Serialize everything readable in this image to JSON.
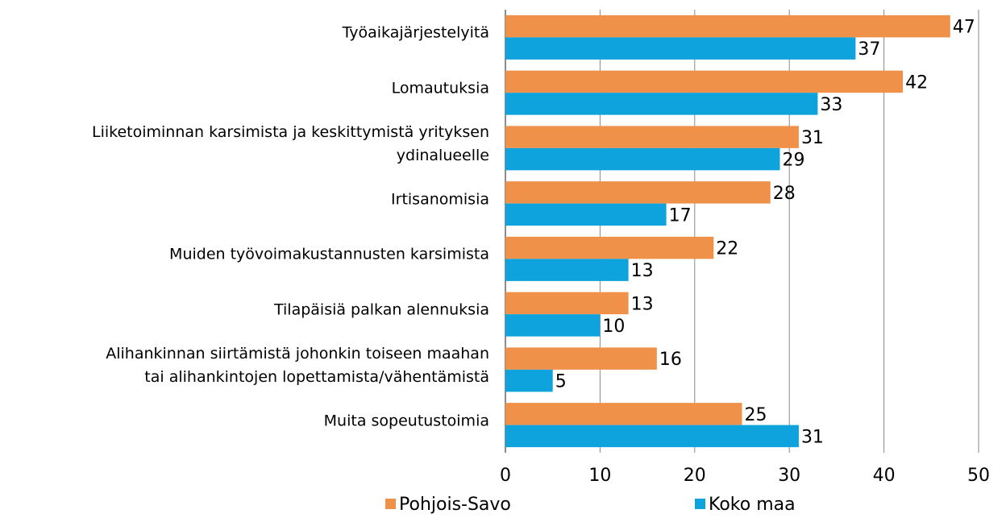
{
  "chart_data": {
    "type": "barh",
    "categories": [
      "Työaikajärjestelyitä",
      "Lomautuksia",
      "Liiketoiminnan karsimista ja keskittymistä yrityksen\nydinalueelle",
      "Irtisanomisia",
      "Muiden työvoimakustannusten karsimista",
      "Tilapäisiä palkan alennuksia",
      "Alihankinnan siirtämistä johonkin toiseen maahan\ntai alihankintojen lopettamista/vähentämistä",
      "Muita sopeutustoimia"
    ],
    "series": [
      {
        "name": "Pohjois-Savo",
        "color": "#f0914a",
        "values": [
          47,
          42,
          31,
          28,
          22,
          13,
          16,
          25
        ]
      },
      {
        "name": "Koko maa",
        "color": "#0fa3dd",
        "values": [
          37,
          33,
          29,
          17,
          13,
          10,
          5,
          31
        ]
      }
    ],
    "xlim": [
      0,
      50
    ],
    "xticks": [
      0,
      10,
      20,
      30,
      40,
      50
    ],
    "grid": true
  }
}
